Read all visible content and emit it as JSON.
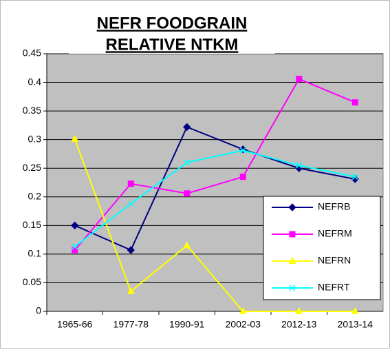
{
  "chart_data": {
    "type": "line",
    "title": [
      "NEFR FOODGRAIN",
      "RELATIVE NTKM"
    ],
    "categories": [
      "1965-66",
      "1977-78",
      "1990-91",
      "2002-03",
      "2012-13",
      "2013-14"
    ],
    "series": [
      {
        "name": "NEFRB",
        "color": "#000080",
        "marker": "diamond",
        "values": [
          0.15,
          0.107,
          0.322,
          0.283,
          0.25,
          0.231
        ]
      },
      {
        "name": "NEFRM",
        "color": "#ff00ff",
        "marker": "square",
        "values": [
          0.107,
          0.223,
          0.206,
          0.235,
          0.406,
          0.365
        ]
      },
      {
        "name": "NEFRN",
        "color": "#ffff00",
        "marker": "triangle",
        "values": [
          0.301,
          0.035,
          0.115,
          0,
          0,
          0
        ]
      },
      {
        "name": "NEFRT",
        "color": "#00ffff",
        "marker": "x",
        "values": [
          0.113,
          0.188,
          0.26,
          0.281,
          0.255,
          0.235
        ]
      }
    ],
    "ylim": [
      0,
      0.45
    ],
    "yticks": [
      0,
      0.05,
      0.1,
      0.15,
      0.2,
      0.25,
      0.3,
      0.35,
      0.4,
      0.45
    ],
    "grid": true
  }
}
